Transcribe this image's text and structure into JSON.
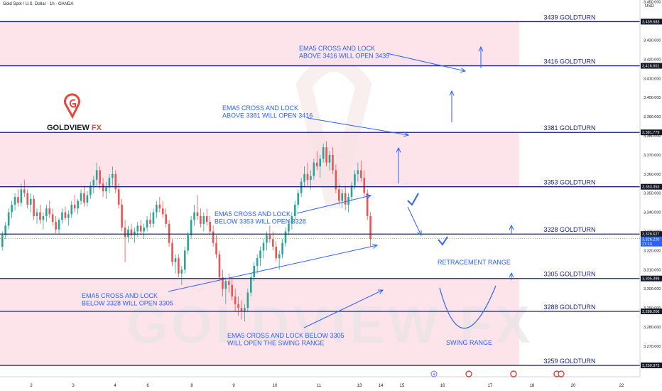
{
  "header": {
    "title": "Gold Spot / U.S. Dollar · 1h · OANDA",
    "currency": "USD"
  },
  "logo": {
    "text_a": "GOLDVIEW",
    "text_b": "FX"
  },
  "watermark": "GOLDVIEW FX",
  "colors": {
    "zone": "#fde4ea",
    "level": "#1a237e",
    "annot": "#2962ff",
    "up": "#26a69a",
    "down": "#ef5350",
    "logo_red": "#e4473d",
    "price_tag": "#2962ff"
  },
  "chart_data": {
    "type": "candlestick",
    "ylim": [
      3254,
      3451
    ],
    "y_ticks": [
      "3,450.000",
      "3,440.000",
      "3,430.000",
      "3,420.000",
      "3,410.000",
      "3,400.000",
      "3,390.000",
      "3,380.000",
      "3,370.000",
      "3,360.000",
      "3,350.000",
      "3,340.000",
      "3,330.000",
      "3,320.000",
      "3,310.000",
      "3,300.000",
      "3,290.000",
      "3,280.000",
      "3,270.000",
      "3,260.000"
    ],
    "x_labels": [
      "2",
      "3",
      "4",
      "6",
      "8",
      "9",
      "10",
      "11",
      "13",
      "14",
      "15",
      "16",
      "17",
      "18",
      "20",
      "22"
    ],
    "levels": [
      {
        "value": 3439.683,
        "label": "3439 GOLDTURN",
        "price": "3,439.683"
      },
      {
        "value": 3416.601,
        "label": "3416 GOLDTURN",
        "price": "3,416.601"
      },
      {
        "value": 3381.779,
        "label": "3381 GOLDTURN",
        "price": "3,381.779"
      },
      {
        "value": 3353.353,
        "label": "3353 GOLDTURN",
        "price": "3,353.353"
      },
      {
        "value": 3328.627,
        "label": "3328 GOLDTURN",
        "price": "3,328.627"
      },
      {
        "value": 3305.398,
        "label": "3305 GOLDTURN",
        "price": "3,305.398"
      },
      {
        "value": 3288.206,
        "label": "3288 GOLDTURN",
        "price": "3,288.206"
      },
      {
        "value": 3259.973,
        "label": "3259 GOLDTURN",
        "price": "3,259.973"
      }
    ],
    "current_price": {
      "value": 3326.22,
      "label": "3,326.220",
      "countdown": "27:13"
    },
    "zones": [
      [
        3416.601,
        3439.683
      ],
      [
        3353.353,
        3381.779
      ],
      [
        3259.973,
        3305.398
      ]
    ],
    "annotations": [
      {
        "lines": [
          "EMA5 CROSS AND LOCK",
          "ABOVE 3416 WILL OPEN 3439"
        ]
      },
      {
        "lines": [
          "EMA5 CROSS AND LOCK",
          "ABOVE 3381 WILL OPEN 3416"
        ]
      },
      {
        "lines": [
          "EMA5 CROSS AND LOCK",
          "BELOW 3353 WILL OPEN 3328"
        ]
      },
      {
        "lines": [
          "EMA5 CROSS AND LOCK",
          "BELOW 3328 WILL OPEN 3305"
        ]
      },
      {
        "lines": [
          "EMA5 CROSS AND LOCK BELOW 3305",
          "WILL OPEN THE SWING RANGE"
        ]
      },
      {
        "lines": [
          "RETRACEMENT RANGE"
        ]
      },
      {
        "lines": [
          "SWING RANGE"
        ]
      }
    ],
    "candles": [
      [
        3322.0,
        3330.0,
        3320.0,
        3328.0
      ],
      [
        3328.0,
        3335.0,
        3326.0,
        3333.0
      ],
      [
        3333.0,
        3342.0,
        3331.0,
        3340.0
      ],
      [
        3340.0,
        3346.0,
        3337.0,
        3344.0
      ],
      [
        3344.0,
        3350.0,
        3341.0,
        3348.0
      ],
      [
        3348.0,
        3352.0,
        3343.0,
        3345.0
      ],
      [
        3345.0,
        3355.0,
        3343.0,
        3352.0
      ],
      [
        3352.0,
        3357.0,
        3348.0,
        3350.0
      ],
      [
        3350.0,
        3352.0,
        3342.0,
        3344.0
      ],
      [
        3344.0,
        3350.0,
        3340.0,
        3347.0
      ],
      [
        3347.0,
        3349.0,
        3336.0,
        3338.0
      ],
      [
        3338.0,
        3342.0,
        3334.0,
        3340.0
      ],
      [
        3340.0,
        3344.0,
        3334.0,
        3336.0
      ],
      [
        3336.0,
        3340.0,
        3331.0,
        3338.0
      ],
      [
        3338.0,
        3344.0,
        3335.0,
        3342.0
      ],
      [
        3342.0,
        3346.0,
        3337.0,
        3339.0
      ],
      [
        3339.0,
        3342.0,
        3333.0,
        3335.0
      ],
      [
        3335.0,
        3338.0,
        3329.0,
        3331.0
      ],
      [
        3331.0,
        3337.0,
        3329.0,
        3336.0
      ],
      [
        3336.0,
        3342.0,
        3334.0,
        3340.0
      ],
      [
        3340.0,
        3343.0,
        3336.0,
        3337.0
      ],
      [
        3337.0,
        3341.0,
        3333.0,
        3339.0
      ],
      [
        3339.0,
        3346.0,
        3337.0,
        3344.0
      ],
      [
        3344.0,
        3349.0,
        3340.0,
        3342.0
      ],
      [
        3342.0,
        3347.0,
        3339.0,
        3346.0
      ],
      [
        3346.0,
        3352.0,
        3344.0,
        3350.0
      ],
      [
        3350.0,
        3354.0,
        3343.0,
        3345.0
      ],
      [
        3345.0,
        3351.0,
        3343.0,
        3349.0
      ],
      [
        3349.0,
        3356.0,
        3347.0,
        3354.0
      ],
      [
        3354.0,
        3359.0,
        3350.0,
        3357.0
      ],
      [
        3357.0,
        3366.0,
        3354.0,
        3362.0
      ],
      [
        3362.0,
        3364.0,
        3352.0,
        3355.0
      ],
      [
        3355.0,
        3358.0,
        3348.0,
        3351.0
      ],
      [
        3351.0,
        3356.0,
        3347.0,
        3353.0
      ],
      [
        3353.0,
        3360.0,
        3350.0,
        3358.0
      ],
      [
        3358.0,
        3364.0,
        3354.0,
        3360.0
      ],
      [
        3360.0,
        3362.0,
        3350.0,
        3352.0
      ],
      [
        3352.0,
        3355.0,
        3342.0,
        3344.0
      ],
      [
        3344.0,
        3347.0,
        3330.0,
        3332.0
      ],
      [
        3332.0,
        3336.0,
        3314.0,
        3327.0
      ],
      [
        3327.0,
        3333.0,
        3324.0,
        3331.0
      ],
      [
        3331.0,
        3334.0,
        3326.0,
        3328.0
      ],
      [
        3328.0,
        3332.0,
        3324.0,
        3330.0
      ],
      [
        3330.0,
        3335.0,
        3327.0,
        3333.0
      ],
      [
        3333.0,
        3336.0,
        3328.0,
        3330.0
      ],
      [
        3330.0,
        3334.0,
        3326.0,
        3332.0
      ],
      [
        3332.0,
        3338.0,
        3330.0,
        3336.0
      ],
      [
        3336.0,
        3340.0,
        3332.0,
        3334.0
      ],
      [
        3334.0,
        3342.0,
        3332.0,
        3340.0
      ],
      [
        3340.0,
        3346.0,
        3337.0,
        3344.0
      ],
      [
        3344.0,
        3348.0,
        3340.0,
        3342.0
      ],
      [
        3342.0,
        3346.0,
        3337.0,
        3339.0
      ],
      [
        3339.0,
        3342.0,
        3332.0,
        3334.0
      ],
      [
        3334.0,
        3336.0,
        3322.0,
        3324.0
      ],
      [
        3324.0,
        3326.0,
        3312.0,
        3314.0
      ],
      [
        3314.0,
        3318.0,
        3308.0,
        3316.0
      ],
      [
        3316.0,
        3318.0,
        3306.0,
        3308.0
      ],
      [
        3308.0,
        3312.0,
        3302.0,
        3310.0
      ],
      [
        3310.0,
        3322.0,
        3308.0,
        3320.0
      ],
      [
        3320.0,
        3330.0,
        3318.0,
        3328.0
      ],
      [
        3328.0,
        3338.0,
        3326.0,
        3336.0
      ],
      [
        3336.0,
        3344.0,
        3333.0,
        3340.0
      ],
      [
        3340.0,
        3349.0,
        3336.0,
        3338.0
      ],
      [
        3338.0,
        3342.0,
        3332.0,
        3334.0
      ],
      [
        3334.0,
        3340.0,
        3330.0,
        3338.0
      ],
      [
        3338.0,
        3342.0,
        3333.0,
        3335.0
      ],
      [
        3335.0,
        3338.0,
        3328.0,
        3330.0
      ],
      [
        3330.0,
        3333.0,
        3322.0,
        3324.0
      ],
      [
        3324.0,
        3328.0,
        3316.0,
        3318.0
      ],
      [
        3318.0,
        3320.0,
        3304.0,
        3306.0
      ],
      [
        3306.0,
        3310.0,
        3296.0,
        3300.0
      ],
      [
        3300.0,
        3306.0,
        3292.0,
        3304.0
      ],
      [
        3304.0,
        3308.0,
        3298.0,
        3302.0
      ],
      [
        3302.0,
        3305.0,
        3294.0,
        3296.0
      ],
      [
        3296.0,
        3300.0,
        3288.0,
        3292.0
      ],
      [
        3292.0,
        3296.0,
        3286.0,
        3290.0
      ],
      [
        3290.0,
        3294.0,
        3284.0,
        3288.0
      ],
      [
        3288.0,
        3292.0,
        3283.0,
        3290.0
      ],
      [
        3290.0,
        3300.0,
        3288.0,
        3298.0
      ],
      [
        3298.0,
        3308.0,
        3296.0,
        3306.0
      ],
      [
        3306.0,
        3314.0,
        3304.0,
        3312.0
      ],
      [
        3312.0,
        3318.0,
        3308.0,
        3316.0
      ],
      [
        3316.0,
        3322.0,
        3312.0,
        3320.0
      ],
      [
        3320.0,
        3326.0,
        3316.0,
        3324.0
      ],
      [
        3324.0,
        3330.0,
        3320.0,
        3328.0
      ],
      [
        3328.0,
        3333.0,
        3324.0,
        3326.0
      ],
      [
        3326.0,
        3330.0,
        3320.0,
        3322.0
      ],
      [
        3322.0,
        3325.0,
        3314.0,
        3316.0
      ],
      [
        3316.0,
        3320.0,
        3310.0,
        3318.0
      ],
      [
        3318.0,
        3326.0,
        3316.0,
        3324.0
      ],
      [
        3324.0,
        3332.0,
        3322.0,
        3330.0
      ],
      [
        3330.0,
        3336.0,
        3328.0,
        3334.0
      ],
      [
        3334.0,
        3340.0,
        3331.0,
        3338.0
      ],
      [
        3338.0,
        3346.0,
        3336.0,
        3344.0
      ],
      [
        3344.0,
        3352.0,
        3342.0,
        3350.0
      ],
      [
        3350.0,
        3358.0,
        3348.0,
        3356.0
      ],
      [
        3356.0,
        3364.0,
        3353.0,
        3360.0
      ],
      [
        3360.0,
        3366.0,
        3354.0,
        3357.0
      ],
      [
        3357.0,
        3362.0,
        3352.0,
        3359.0
      ],
      [
        3359.0,
        3368.0,
        3357.0,
        3366.0
      ],
      [
        3366.0,
        3372.0,
        3362.0,
        3364.0
      ],
      [
        3364.0,
        3370.0,
        3358.0,
        3368.0
      ],
      [
        3368.0,
        3376.0,
        3366.0,
        3374.0
      ],
      [
        3374.0,
        3377.0,
        3364.0,
        3366.0
      ],
      [
        3366.0,
        3372.0,
        3362.0,
        3370.0
      ],
      [
        3370.0,
        3374.0,
        3360.0,
        3362.0
      ],
      [
        3362.0,
        3365.0,
        3350.0,
        3352.0
      ],
      [
        3352.0,
        3355.0,
        3344.0,
        3346.0
      ],
      [
        3346.0,
        3352.0,
        3342.0,
        3350.0
      ],
      [
        3350.0,
        3354.0,
        3341.0,
        3344.0
      ],
      [
        3344.0,
        3350.0,
        3340.0,
        3348.0
      ],
      [
        3348.0,
        3356.0,
        3346.0,
        3354.0
      ],
      [
        3354.0,
        3362.0,
        3352.0,
        3360.0
      ],
      [
        3360.0,
        3366.0,
        3356.0,
        3362.0
      ],
      [
        3362.0,
        3367.0,
        3356.0,
        3358.0
      ],
      [
        3358.0,
        3362.0,
        3348.0,
        3350.0
      ],
      [
        3350.0,
        3352.0,
        3336.0,
        3338.0
      ],
      [
        3338.0,
        3340.0,
        3322.0,
        3326.0
      ]
    ]
  }
}
